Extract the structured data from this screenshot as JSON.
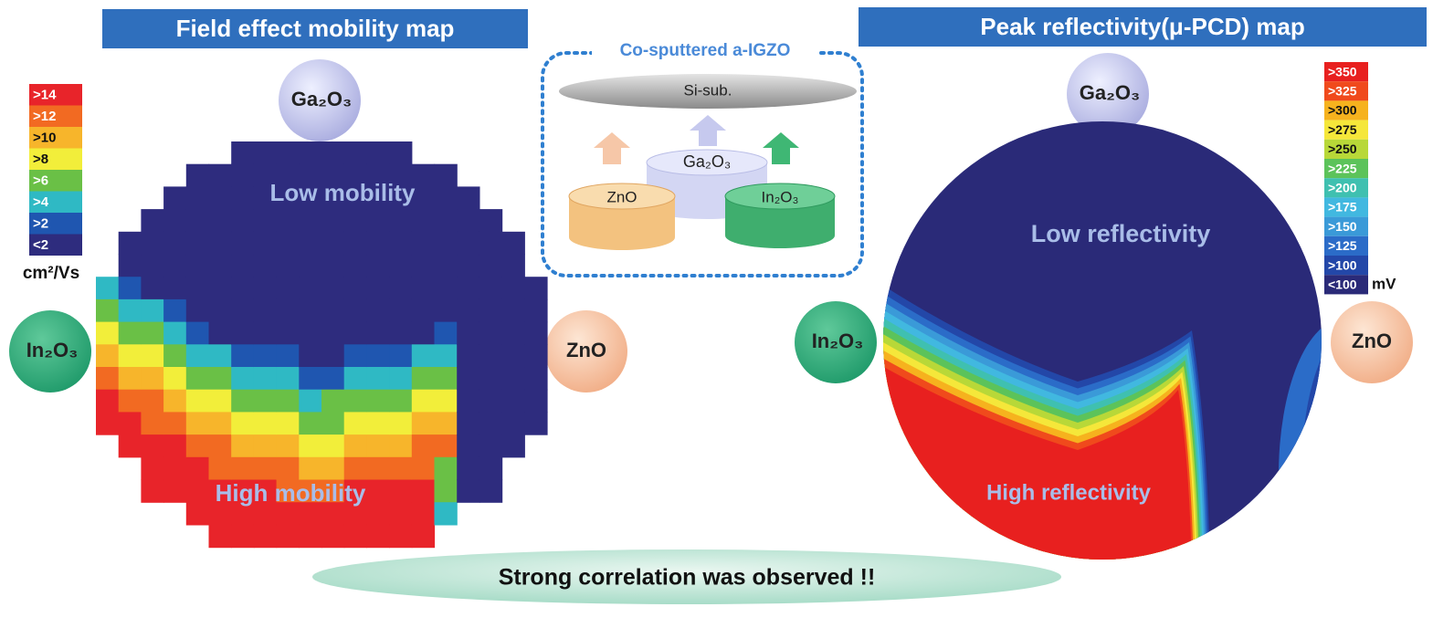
{
  "left_panel": {
    "title": "Field effect mobility map",
    "legend": {
      "items": [
        {
          "label": ">14",
          "color": "#e8242a"
        },
        {
          "label": ">12",
          "color": "#f26a22"
        },
        {
          "label": ">10",
          "color": "#f7b52b"
        },
        {
          "label": ">8",
          "color": "#f2ee3a"
        },
        {
          "label": ">6",
          "color": "#6ac046"
        },
        {
          "label": ">4",
          "color": "#2fb9c4"
        },
        {
          "label": ">2",
          "color": "#1f56b0"
        },
        {
          "label": "<2",
          "color": "#2e2c7e"
        }
      ],
      "unit": "cm²/Vs"
    },
    "top_source": "Ga₂O₃",
    "left_source": "In₂O₃",
    "right_source": "ZnO",
    "low_label": "Low mobility",
    "high_label": "High mobility"
  },
  "center_panel": {
    "title": "Co-sputtered a-IGZO",
    "substrate": "Si-sub.",
    "targets": [
      "Ga₂O₃",
      "ZnO",
      "In₂O₃"
    ]
  },
  "right_panel": {
    "title": "Peak reflectivity(μ-PCD) map",
    "legend": {
      "items": [
        {
          "label": ">350",
          "color": "#e8201f"
        },
        {
          "label": ">325",
          "color": "#f04a1c"
        },
        {
          "label": ">300",
          "color": "#f6b21e"
        },
        {
          "label": ">275",
          "color": "#f5e73a"
        },
        {
          "label": ">250",
          "color": "#b8d838"
        },
        {
          "label": ">225",
          "color": "#5cc35a"
        },
        {
          "label": ">200",
          "color": "#3fc0b0"
        },
        {
          "label": ">175",
          "color": "#41b8e0"
        },
        {
          "label": ">150",
          "color": "#3a9ad8"
        },
        {
          "label": ">125",
          "color": "#2b6cc8"
        },
        {
          "label": ">100",
          "color": "#2347a8"
        },
        {
          "label": "<100",
          "color": "#2a2a78"
        }
      ],
      "unit": "mV"
    },
    "top_source": "Ga₂O₃",
    "left_source": "In₂O₃",
    "right_source": "ZnO",
    "low_label": "Low  reflectivity",
    "high_label": "High reflectivity"
  },
  "footer": "Strong correlation was observed !!"
}
